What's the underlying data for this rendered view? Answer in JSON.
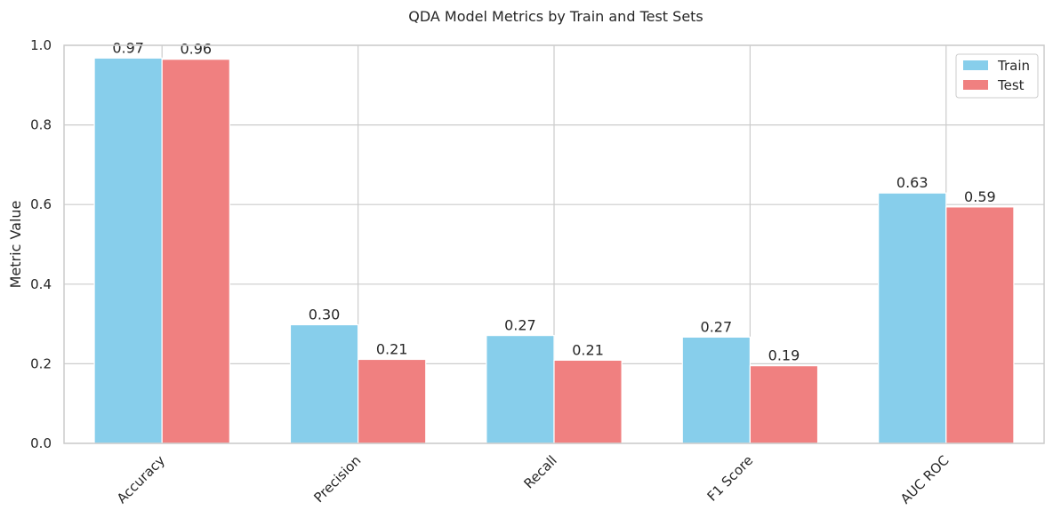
{
  "chart_data": {
    "type": "bar",
    "title": "QDA Model Metrics by Train and Test Sets",
    "xlabel": "",
    "ylabel": "Metric Value",
    "ylim": [
      0,
      1.0
    ],
    "yticks": [
      "0.0",
      "0.2",
      "0.4",
      "0.6",
      "0.8",
      "1.0"
    ],
    "categories": [
      "Accuracy",
      "Precision",
      "Recall",
      "F1 Score",
      "AUC ROC"
    ],
    "series": [
      {
        "name": "Train",
        "color": "#87ceeb",
        "values": [
          0.968,
          0.298,
          0.271,
          0.267,
          0.629
        ],
        "labels": [
          "0.97",
          "0.30",
          "0.27",
          "0.27",
          "0.63"
        ]
      },
      {
        "name": "Test",
        "color": "#f08080",
        "values": [
          0.965,
          0.211,
          0.209,
          0.195,
          0.594
        ],
        "labels": [
          "0.96",
          "0.21",
          "0.21",
          "0.19",
          "0.59"
        ]
      }
    ],
    "grid": true,
    "legend": "top-right"
  }
}
